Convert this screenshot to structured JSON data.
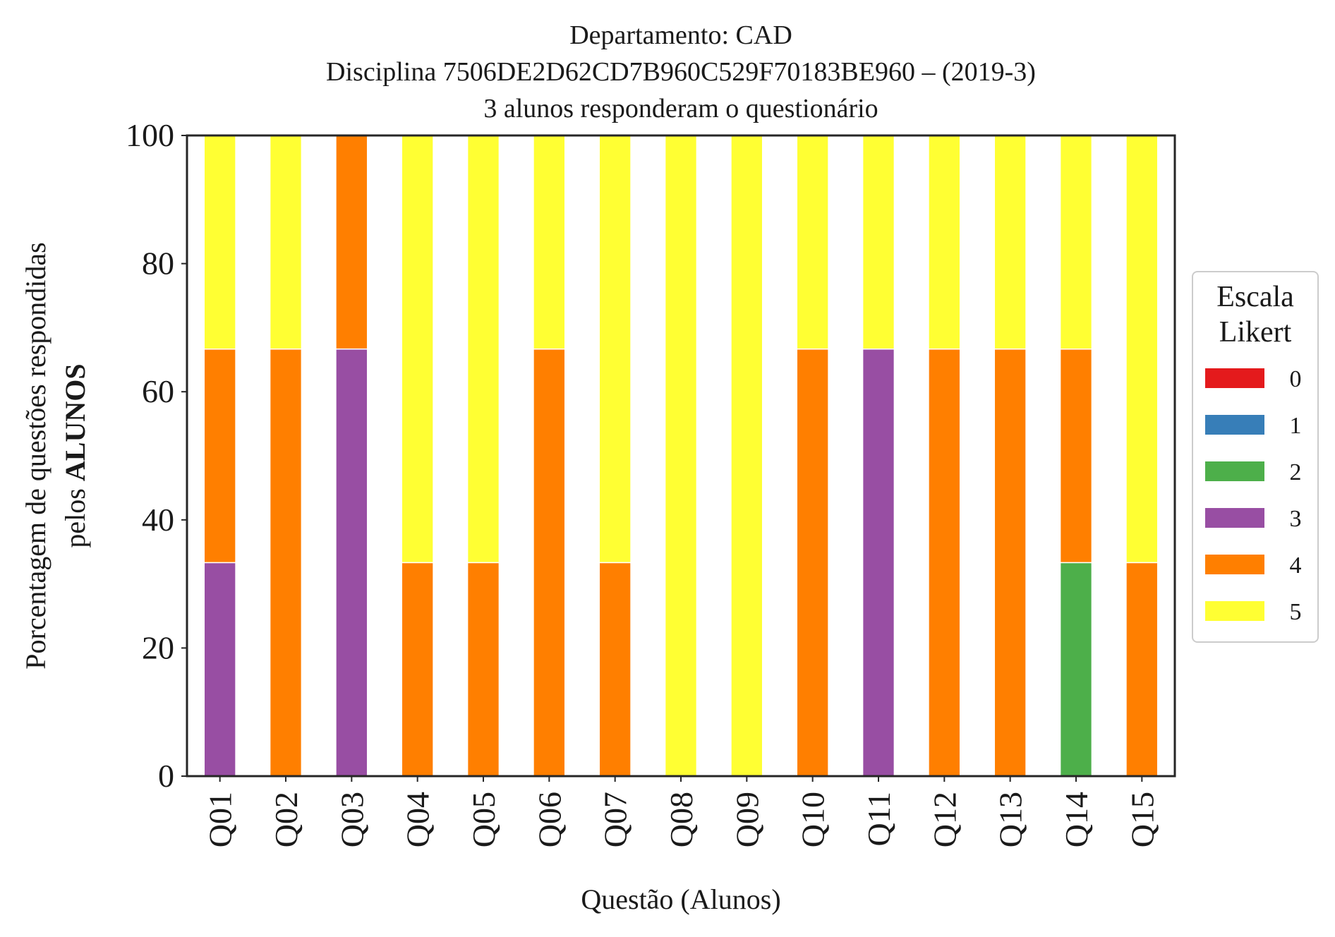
{
  "chart_data": {
    "type": "bar",
    "stacked": true,
    "title": [
      "Departamento: CAD",
      "Disciplina 7506DE2D62CD7B960C529F70183BE960 – (2019-3)",
      "3 alunos responderam o questionário"
    ],
    "xlabel": "Questão (Alunos)",
    "ylabel_line1": "Porcentagem de questões respondidas",
    "ylabel_line2_prefix": "pelos ",
    "ylabel_line2_bold": "ALUNOS",
    "ylim": [
      0,
      100
    ],
    "yticks": [
      "0",
      "20",
      "40",
      "60",
      "80",
      "100"
    ],
    "grid": false,
    "categories": [
      "Q01",
      "Q02",
      "Q03",
      "Q04",
      "Q05",
      "Q06",
      "Q07",
      "Q08",
      "Q09",
      "Q10",
      "Q11",
      "Q12",
      "Q13",
      "Q14",
      "Q15"
    ],
    "legend": {
      "title_line1": "Escala",
      "title_line2": "Likert",
      "placement": "right"
    },
    "series": [
      {
        "name": "0",
        "color": "#e41a1c",
        "values": [
          0,
          0,
          0,
          0,
          0,
          0,
          0,
          0,
          0,
          0,
          0,
          0,
          0,
          0,
          0
        ]
      },
      {
        "name": "1",
        "color": "#377eb8",
        "values": [
          0,
          0,
          0,
          0,
          0,
          0,
          0,
          0,
          0,
          0,
          0,
          0,
          0,
          0,
          0
        ]
      },
      {
        "name": "2",
        "color": "#4daf4a",
        "values": [
          0,
          0,
          0,
          0,
          0,
          0,
          0,
          0,
          0,
          0,
          0,
          0,
          0,
          33.33,
          0
        ]
      },
      {
        "name": "3",
        "color": "#984ea3",
        "values": [
          33.33,
          0,
          66.67,
          0,
          0,
          0,
          0,
          0,
          0,
          0,
          66.67,
          0,
          0,
          0,
          0
        ]
      },
      {
        "name": "4",
        "color": "#ff7f00",
        "values": [
          33.33,
          66.67,
          33.33,
          33.33,
          33.33,
          66.67,
          33.33,
          0,
          0,
          66.67,
          0,
          66.67,
          66.67,
          33.33,
          33.33
        ]
      },
      {
        "name": "5",
        "color": "#ffff33",
        "values": [
          33.33,
          33.33,
          0,
          66.67,
          66.67,
          33.33,
          66.67,
          100,
          100,
          33.33,
          33.33,
          33.33,
          33.33,
          33.33,
          66.67
        ]
      }
    ]
  }
}
